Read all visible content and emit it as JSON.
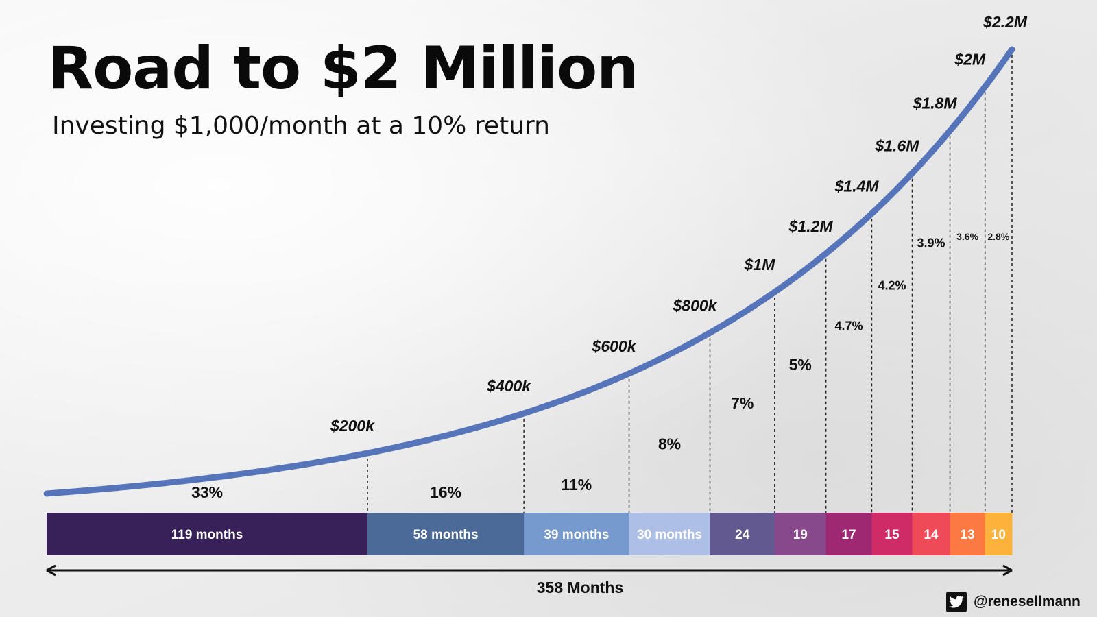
{
  "header": {
    "title": "Road to $2 Million",
    "subtitle": "Investing $1,000/month at a 10% return"
  },
  "footer": {
    "handle": "@renesellmann",
    "icon": "twitter-bird-icon"
  },
  "chart_data": {
    "type": "line",
    "title": "Road to $2 Million",
    "subtitle": "Investing $1,000/month at a 10% return",
    "x_unit": "months",
    "milestones": [
      {
        "label": "$200k",
        "value": 200000,
        "month": 119
      },
      {
        "label": "$400k",
        "value": 400000,
        "month": 177
      },
      {
        "label": "$600k",
        "value": 600000,
        "month": 216
      },
      {
        "label": "$800k",
        "value": 800000,
        "month": 246
      },
      {
        "label": "$1M",
        "value": 1000000,
        "month": 270
      },
      {
        "label": "$1.2M",
        "value": 1200000,
        "month": 289
      },
      {
        "label": "$1.4M",
        "value": 1400000,
        "month": 306
      },
      {
        "label": "$1.6M",
        "value": 1600000,
        "month": 321
      },
      {
        "label": "$1.8M",
        "value": 1800000,
        "month": 335
      },
      {
        "label": "$2M",
        "value": 2000000,
        "month": 348
      },
      {
        "label": "$2.2M",
        "value": 2200000,
        "month": 358
      }
    ],
    "segments": [
      {
        "months": 119,
        "label": "119 months",
        "pct": "33%",
        "color": "#372158"
      },
      {
        "months": 58,
        "label": "58 months",
        "pct": "16%",
        "color": "#4c6a98"
      },
      {
        "months": 39,
        "label": "39 months",
        "pct": "11%",
        "color": "#7699ce"
      },
      {
        "months": 30,
        "label": "30 months",
        "pct": "8%",
        "color": "#aebfe6"
      },
      {
        "months": 24,
        "label": "24",
        "pct": "7%",
        "color": "#625990"
      },
      {
        "months": 19,
        "label": "19",
        "pct": "5%",
        "color": "#87488c"
      },
      {
        "months": 17,
        "label": "17",
        "pct": "4.7%",
        "color": "#9f2872"
      },
      {
        "months": 15,
        "label": "15",
        "pct": "4.2%",
        "color": "#cf2b67"
      },
      {
        "months": 14,
        "label": "14",
        "pct": "3.9%",
        "color": "#ee4a58"
      },
      {
        "months": 13,
        "label": "13",
        "pct": "3.6%",
        "color": "#fc7a42"
      },
      {
        "months": 10,
        "label": "10",
        "pct": "2.8%",
        "color": "#fdb23c"
      }
    ],
    "total_label": "358 Months",
    "line_color": "#5674b9",
    "ylim": [
      0,
      2200000
    ],
    "grid": false
  }
}
